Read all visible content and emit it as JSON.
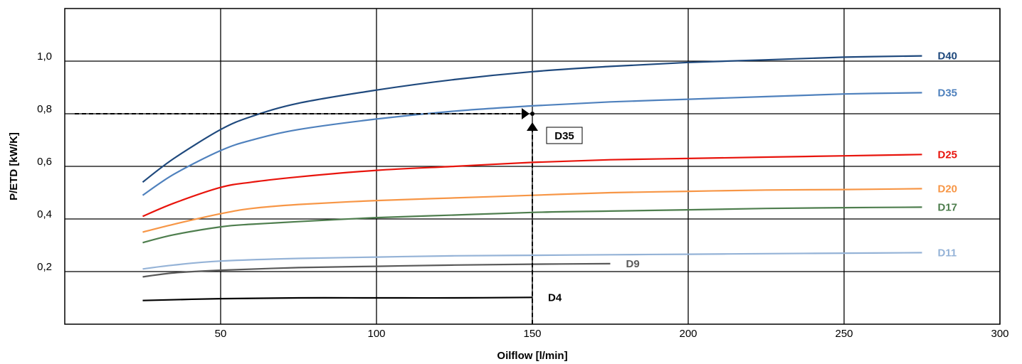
{
  "chart_data": {
    "type": "line",
    "title": "",
    "xlabel": "Oilflow [l/min]",
    "ylabel": "P/ETD [kW/K]",
    "xlim": [
      0,
      300
    ],
    "ylim": [
      0,
      1.2
    ],
    "x_ticks": [
      50,
      100,
      150,
      200,
      250,
      300
    ],
    "x_tick_labels": [
      "50",
      "100",
      "150",
      "200",
      "250",
      "300"
    ],
    "y_ticks": [
      0.2,
      0.4,
      0.6,
      0.8,
      1.0
    ],
    "y_tick_labels": [
      "0,2",
      "0,4",
      "0,6",
      "0,8",
      "1,0"
    ],
    "grid": true,
    "series": [
      {
        "name": "D40",
        "color": "#1f497d",
        "x": [
          25,
          35,
          50,
          60,
          75,
          100,
          125,
          150,
          175,
          200,
          225,
          250,
          275
        ],
        "y": [
          0.54,
          0.63,
          0.74,
          0.79,
          0.84,
          0.89,
          0.93,
          0.96,
          0.98,
          0.995,
          1.005,
          1.015,
          1.02
        ]
      },
      {
        "name": "D35",
        "color": "#4f81bd",
        "x": [
          25,
          35,
          50,
          60,
          75,
          100,
          125,
          150,
          175,
          200,
          225,
          250,
          275
        ],
        "y": [
          0.49,
          0.57,
          0.66,
          0.7,
          0.74,
          0.78,
          0.81,
          0.83,
          0.845,
          0.855,
          0.865,
          0.875,
          0.88
        ]
      },
      {
        "name": "D25",
        "color": "#e8140c",
        "x": [
          25,
          35,
          50,
          60,
          75,
          100,
          125,
          150,
          175,
          200,
          225,
          250,
          275
        ],
        "y": [
          0.41,
          0.46,
          0.52,
          0.54,
          0.56,
          0.585,
          0.6,
          0.615,
          0.625,
          0.63,
          0.635,
          0.64,
          0.645
        ]
      },
      {
        "name": "D20",
        "color": "#f79646",
        "x": [
          25,
          35,
          50,
          60,
          75,
          100,
          125,
          150,
          175,
          200,
          225,
          250,
          275
        ],
        "y": [
          0.35,
          0.38,
          0.42,
          0.44,
          0.455,
          0.47,
          0.48,
          0.49,
          0.5,
          0.505,
          0.51,
          0.512,
          0.515
        ]
      },
      {
        "name": "D17",
        "color": "#4e7e4e",
        "x": [
          25,
          35,
          50,
          60,
          75,
          100,
          125,
          150,
          175,
          200,
          225,
          250,
          275
        ],
        "y": [
          0.31,
          0.34,
          0.37,
          0.38,
          0.39,
          0.405,
          0.415,
          0.425,
          0.43,
          0.435,
          0.44,
          0.443,
          0.445
        ]
      },
      {
        "name": "D11",
        "color": "#95b3d7",
        "x": [
          25,
          35,
          50,
          75,
          100,
          125,
          150,
          175,
          200,
          225,
          250,
          275
        ],
        "y": [
          0.21,
          0.225,
          0.24,
          0.25,
          0.255,
          0.26,
          0.262,
          0.264,
          0.266,
          0.268,
          0.27,
          0.272
        ]
      },
      {
        "name": "D9",
        "color": "#595959",
        "x": [
          25,
          35,
          50,
          75,
          100,
          125,
          150,
          175
        ],
        "y": [
          0.18,
          0.195,
          0.205,
          0.215,
          0.22,
          0.225,
          0.228,
          0.23
        ]
      },
      {
        "name": "D4",
        "color": "#000000",
        "x": [
          25,
          50,
          75,
          100,
          125,
          150
        ],
        "y": [
          0.09,
          0.097,
          0.1,
          0.1,
          0.1,
          0.102
        ]
      }
    ],
    "annotation": {
      "label": "D35",
      "flow": 150,
      "value": 0.8
    }
  }
}
